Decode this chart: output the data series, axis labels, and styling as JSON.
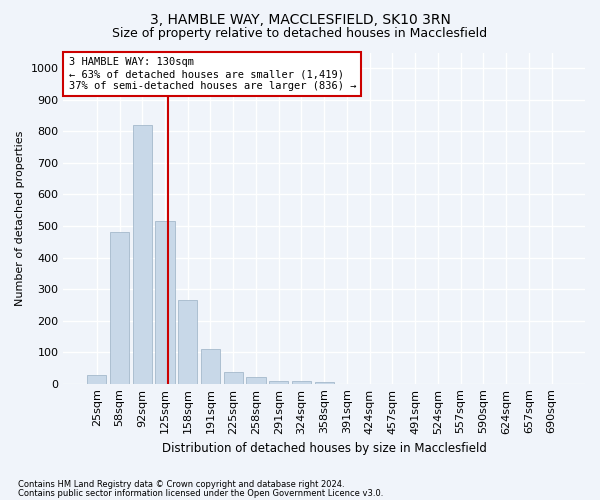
{
  "title_line1": "3, HAMBLE WAY, MACCLESFIELD, SK10 3RN",
  "title_line2": "Size of property relative to detached houses in Macclesfield",
  "xlabel": "Distribution of detached houses by size in Macclesfield",
  "ylabel": "Number of detached properties",
  "footnote_line1": "Contains HM Land Registry data © Crown copyright and database right 2024.",
  "footnote_line2": "Contains public sector information licensed under the Open Government Licence v3.0.",
  "bar_labels": [
    "25sqm",
    "58sqm",
    "92sqm",
    "125sqm",
    "158sqm",
    "191sqm",
    "225sqm",
    "258sqm",
    "291sqm",
    "324sqm",
    "358sqm",
    "391sqm",
    "424sqm",
    "457sqm",
    "491sqm",
    "524sqm",
    "557sqm",
    "590sqm",
    "624sqm",
    "657sqm",
    "690sqm"
  ],
  "bar_values": [
    28,
    480,
    820,
    515,
    265,
    110,
    38,
    20,
    10,
    8,
    5,
    0,
    0,
    0,
    0,
    0,
    0,
    0,
    0,
    0,
    0
  ],
  "bar_color": "#c8d8e8",
  "bar_edge_color": "#9ab0c4",
  "vline_color": "#cc0000",
  "vline_pos": 3.15,
  "annotation_text": "3 HAMBLE WAY: 130sqm\n← 63% of detached houses are smaller (1,419)\n37% of semi-detached houses are larger (836) →",
  "annotation_box_color": "#ffffff",
  "annotation_box_edge": "#cc0000",
  "ylim": [
    0,
    1050
  ],
  "yticks": [
    0,
    100,
    200,
    300,
    400,
    500,
    600,
    700,
    800,
    900,
    1000
  ],
  "bg_color": "#f0f4fa",
  "plot_bg_color": "#f0f4fa",
  "grid_color": "#ffffff",
  "title_fontsize": 10,
  "subtitle_fontsize": 9,
  "annot_fontsize": 7.5
}
